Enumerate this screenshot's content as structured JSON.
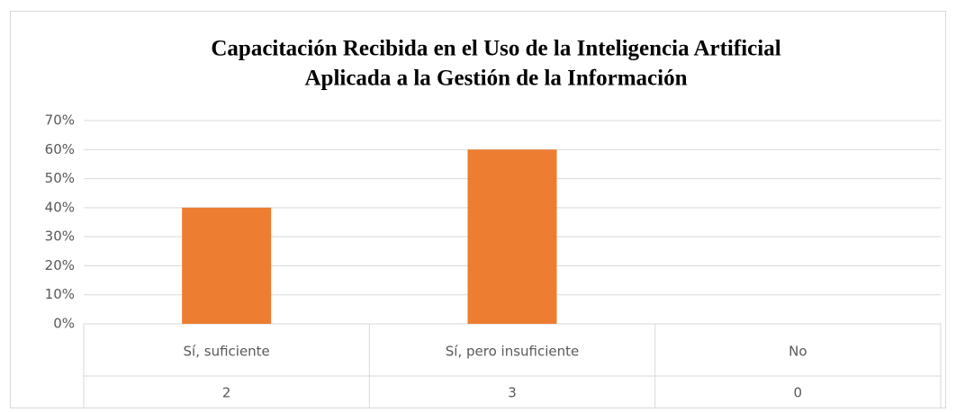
{
  "chart_data": {
    "type": "bar",
    "title": [
      "Capacitación Recibida en el Uso de la Inteligencia Artificial",
      "Aplicada a la Gestión de la Información"
    ],
    "categories": [
      "Sí, suficiente",
      "Sí, pero insuficiente",
      "No"
    ],
    "values": [
      40,
      60,
      0
    ],
    "table_values": [
      2,
      3,
      0
    ],
    "color": "#ed7d31",
    "ylim": [
      0,
      70
    ],
    "yticks": [
      {
        "value": 0,
        "label": "0%"
      },
      {
        "value": 10,
        "label": "10%"
      },
      {
        "value": 20,
        "label": "20%"
      },
      {
        "value": 30,
        "label": "30%"
      },
      {
        "value": 40,
        "label": "40%"
      },
      {
        "value": 50,
        "label": "50%"
      },
      {
        "value": 60,
        "label": "60%"
      },
      {
        "value": 70,
        "label": "70%"
      }
    ],
    "grid": true
  }
}
